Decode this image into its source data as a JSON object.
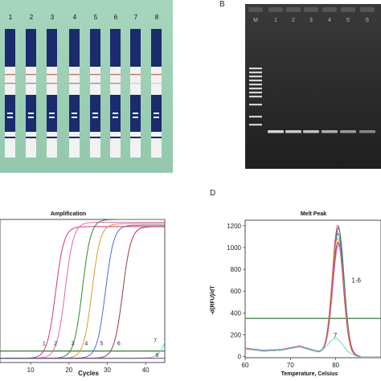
{
  "panels": {
    "A": {
      "label": "",
      "strip_labels": [
        "1",
        "2",
        "3",
        "4",
        "5",
        "6",
        "7",
        "8"
      ]
    },
    "B": {
      "label": "B",
      "lane_labels": [
        "M",
        "1",
        "2",
        "3",
        "4",
        "5",
        "6"
      ]
    },
    "C": {
      "label": ""
    },
    "D": {
      "label": "D"
    }
  },
  "colors": {
    "strip_background": "#9ed0b6",
    "strip_dark": "#1a2b6e",
    "gel_background": "#2a2a2a",
    "band": "#e8e8e8",
    "threshold": "#2e7d32"
  },
  "chart_data": [
    {
      "type": "line",
      "title": "Amplification",
      "xlabel": "Cycles",
      "ylabel": "",
      "xlim": [
        2,
        45
      ],
      "ylim": [
        0,
        100
      ],
      "x_ticks": [
        "10",
        "20",
        "30",
        "40"
      ],
      "series": [
        {
          "name": "1",
          "color": "#d63384",
          "midpoint": 16.5,
          "plateau": 92,
          "label_x": 13.5,
          "label_y": 12
        },
        {
          "name": "2",
          "color": "#e066b0",
          "midpoint": 19.0,
          "plateau": 95,
          "label_x": 16.5,
          "label_y": 12
        },
        {
          "name": "3",
          "color": "#2e8b2e",
          "midpoint": 23.5,
          "plateau": 97,
          "label_x": 21.0,
          "label_y": 12
        },
        {
          "name": "4",
          "color": "#e0962d",
          "midpoint": 26.0,
          "plateau": 94,
          "label_x": 24.5,
          "label_y": 12
        },
        {
          "name": "5",
          "color": "#4b6cd8",
          "midpoint": 29.5,
          "plateau": 93,
          "label_x": 28.5,
          "label_y": 12
        },
        {
          "name": "6",
          "color": "#9b3b3b",
          "midpoint": 34.0,
          "plateau": 92,
          "label_x": 33.0,
          "label_y": 12
        },
        {
          "name": "7",
          "color": "#58e0c0",
          "midpoint": 46.0,
          "plateau": 40,
          "label_x": 42.5,
          "label_y": 14
        },
        {
          "name": "8",
          "color": "#6a2d8a",
          "midpoint": 70.0,
          "plateau": 5,
          "label_x": 43.0,
          "label_y": 4
        }
      ]
    },
    {
      "type": "line",
      "title": "Melt Peak",
      "xlabel": "Temperature, Celsius",
      "ylabel": "-d(RFU)/dT",
      "xlim": [
        60,
        90
      ],
      "ylim": [
        -10,
        1250
      ],
      "x_ticks": [
        "60",
        "70",
        "80"
      ],
      "y_ticks": [
        "0",
        "200",
        "400",
        "600",
        "800",
        "1000",
        "1200"
      ],
      "threshold": 350,
      "annotations": [
        {
          "text": "1-6",
          "x": 83.5,
          "y": 680
        },
        {
          "text": "7",
          "x": 79.5,
          "y": 175
        }
      ],
      "series": [
        {
          "name": "1-6",
          "color": "#d63384",
          "peak_x": 80.5,
          "peak_y": 1180
        },
        {
          "name": "1-6",
          "color": "#2e8b2e",
          "peak_x": 80.6,
          "peak_y": 1150
        },
        {
          "name": "1-6",
          "color": "#4b6cd8",
          "peak_x": 80.5,
          "peak_y": 1100
        },
        {
          "name": "1-6",
          "color": "#e0962d",
          "peak_x": 80.4,
          "peak_y": 1060
        },
        {
          "name": "1-6",
          "color": "#9b3b3b",
          "peak_x": 80.5,
          "peak_y": 1020
        },
        {
          "name": "1-6",
          "color": "#e066b0",
          "peak_x": 80.6,
          "peak_y": 990
        },
        {
          "name": "7",
          "color": "#58e0c0",
          "peak_x": 80.0,
          "peak_y": 140
        }
      ]
    }
  ]
}
